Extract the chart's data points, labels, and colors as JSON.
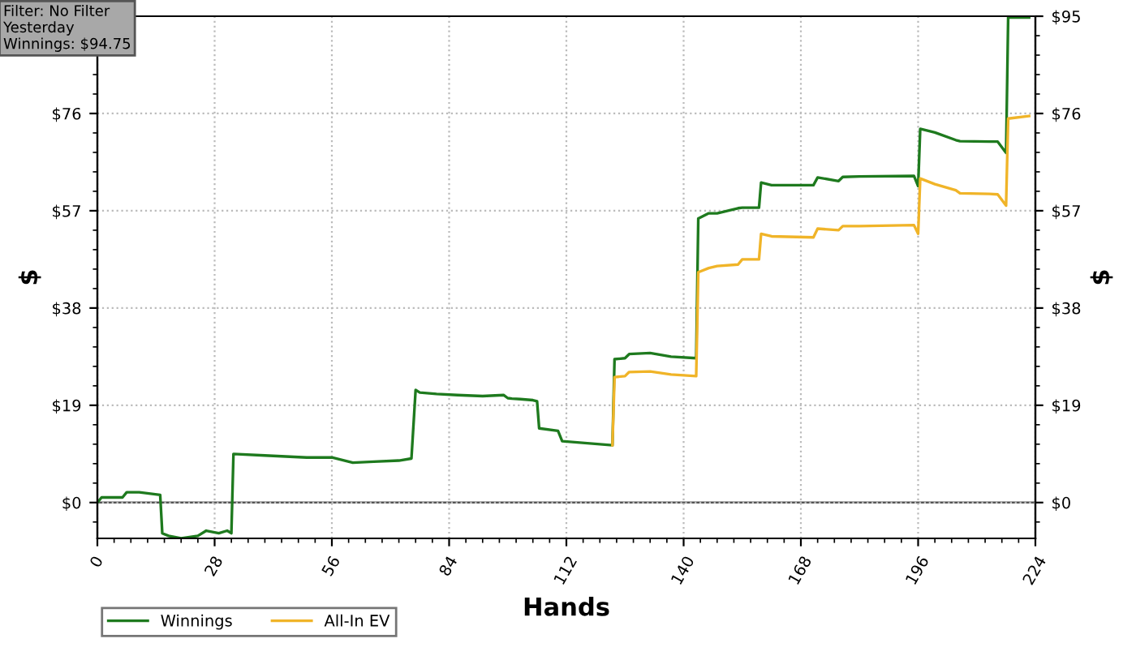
{
  "chart_data": {
    "type": "line",
    "xlabel": "Hands",
    "ylabel": "$",
    "y2label": "$",
    "annotations": [
      "Filter: No Filter\nYesterday\nWinnings: $94.75"
    ],
    "xlim": [
      0,
      224
    ],
    "xticks": [
      0,
      28,
      56,
      84,
      112,
      140,
      168,
      196,
      224
    ],
    "ylim": [
      -7,
      95
    ],
    "yticks": [
      {
        "value": 0,
        "label": "$0"
      },
      {
        "value": 19,
        "label": "$19"
      },
      {
        "value": 38,
        "label": "$38"
      },
      {
        "value": 57,
        "label": "$57"
      },
      {
        "value": 76,
        "label": "$76"
      }
    ],
    "y2lim": [
      -7,
      95
    ],
    "y2ticks": [
      {
        "value": 0,
        "label": "$0"
      },
      {
        "value": 19,
        "label": "$19"
      },
      {
        "value": 38,
        "label": "$38"
      },
      {
        "value": 57,
        "label": "$57"
      },
      {
        "value": 76,
        "label": "$76"
      },
      {
        "value": 95,
        "label": "$95"
      }
    ],
    "ref_lines": [
      {
        "axis": "y",
        "value": 0,
        "color": "#555555"
      }
    ],
    "grid": true,
    "legend": "bottom left",
    "line_style": "solid",
    "series": [
      {
        "name": "Winnings",
        "color": "#1e7a1e",
        "x": [
          0,
          1,
          2,
          6,
          7,
          10,
          15,
          15.5,
          17,
          20,
          24,
          26,
          29,
          31,
          32,
          32.5,
          40,
          50,
          56,
          61,
          66,
          72,
          75,
          76,
          77,
          81,
          86,
          92,
          97,
          98,
          99,
          101,
          104,
          105,
          105.5,
          110,
          111,
          123,
          123.5,
          126,
          127,
          132,
          137,
          143,
          143.5,
          146,
          148,
          153,
          154,
          158,
          158.5,
          161,
          171,
          172,
          177,
          178,
          182,
          195,
          196,
          196.5,
          200,
          205,
          206,
          213,
          215,
          217,
          217.5,
          222.5
        ],
        "values": [
          0,
          1,
          1,
          1,
          2,
          2,
          1.5,
          -6,
          -6.5,
          -7,
          -6.5,
          -5.5,
          -6,
          -5.5,
          -6,
          9.5,
          9.2,
          8.8,
          8.8,
          7.8,
          8.0,
          8.2,
          8.6,
          22,
          21.5,
          21.2,
          21,
          20.8,
          21,
          20.4,
          20.3,
          20.2,
          20,
          19.8,
          14.5,
          14,
          12,
          11.2,
          28,
          28.2,
          29,
          29.2,
          28.5,
          28.2,
          55.5,
          56.5,
          56.5,
          57.5,
          57.6,
          57.6,
          62.5,
          62,
          62,
          63.5,
          62.8,
          63.6,
          63.7,
          63.8,
          61.8,
          73,
          72.3,
          70.8,
          70.6,
          70.5,
          70.5,
          68.3,
          94.75,
          94.75
        ]
      },
      {
        "name": "All-In EV",
        "color": "#f0b428",
        "x": [
          123,
          123.5,
          126,
          127,
          132,
          137,
          143,
          143.5,
          146,
          148,
          153,
          154,
          158,
          158.5,
          161,
          171,
          172,
          177,
          178,
          182,
          195,
          196,
          196.5,
          200,
          205,
          206,
          213,
          215,
          217,
          217.5,
          222.5
        ],
        "values": [
          11.2,
          24.5,
          24.7,
          25.5,
          25.6,
          25,
          24.7,
          45,
          45.8,
          46.2,
          46.5,
          47.5,
          47.5,
          52.5,
          52,
          51.8,
          53.5,
          53.2,
          54,
          54,
          54.2,
          52.5,
          63.3,
          62.2,
          61,
          60.4,
          60.3,
          60.2,
          58,
          75,
          75.5
        ]
      }
    ]
  }
}
